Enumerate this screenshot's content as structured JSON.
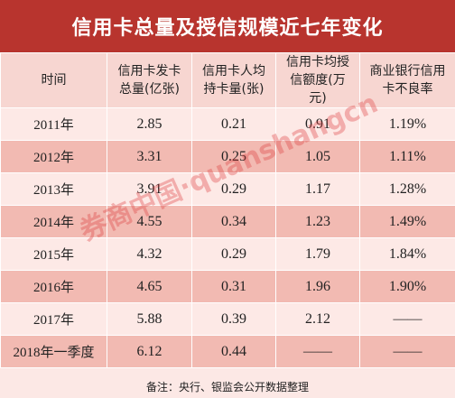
{
  "header": {
    "title": "信用卡总量及授信规模近七年变化"
  },
  "table": {
    "columns": [
      "时间",
      "信用卡发卡总量(亿张)",
      "信用卡人均持卡量(张)",
      "信用卡均授信额度(万元)",
      "商业银行信用卡不良率"
    ],
    "rows": [
      [
        "2011年",
        "2.85",
        "0.21",
        "0.91",
        "1.19%"
      ],
      [
        "2012年",
        "3.31",
        "0.25",
        "1.05",
        "1.11%"
      ],
      [
        "2013年",
        "3.91",
        "0.29",
        "1.17",
        "1.28%"
      ],
      [
        "2014年",
        "4.55",
        "0.34",
        "1.23",
        "1.49%"
      ],
      [
        "2015年",
        "4.32",
        "0.29",
        "1.79",
        "1.84%"
      ],
      [
        "2016年",
        "4.65",
        "0.31",
        "1.96",
        "1.90%"
      ],
      [
        "2017年",
        "5.88",
        "0.39",
        "2.12",
        "——"
      ],
      [
        "2018年一季度",
        "6.12",
        "0.44",
        "——",
        "——"
      ]
    ]
  },
  "footer": {
    "note": "备注：央行、银监会公开数据整理"
  },
  "watermark": "券商中国·quanshangcn"
}
